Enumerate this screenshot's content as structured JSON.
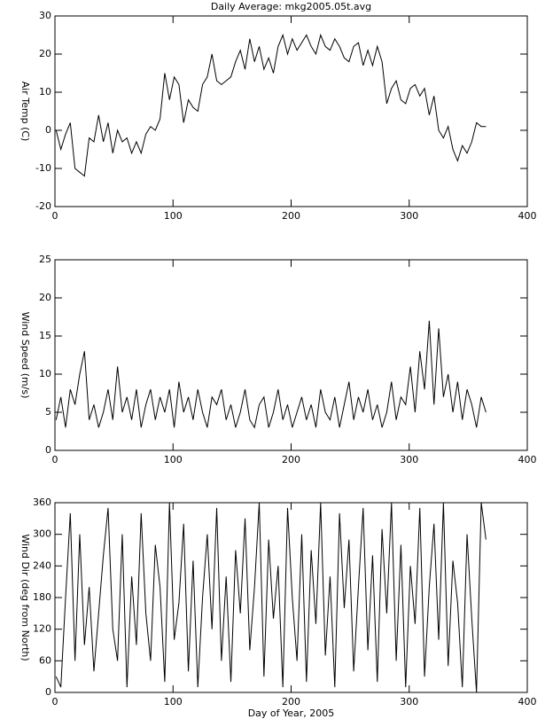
{
  "chart_data": [
    {
      "type": "line",
      "title": "Daily Average: mkg2005.05t.avg",
      "ylabel": "Air Temp (C)",
      "color": "#000000",
      "xlim": [
        0,
        400
      ],
      "xticks": [
        0,
        100,
        200,
        300,
        400
      ],
      "ylim": [
        -20,
        30
      ],
      "yticks": [
        -20,
        -10,
        0,
        10,
        20,
        30
      ],
      "x": [
        1,
        5,
        9,
        13,
        17,
        21,
        25,
        29,
        33,
        37,
        41,
        45,
        49,
        53,
        57,
        61,
        65,
        69,
        73,
        77,
        81,
        85,
        89,
        93,
        97,
        101,
        105,
        109,
        113,
        117,
        121,
        125,
        129,
        133,
        137,
        141,
        145,
        149,
        153,
        157,
        161,
        165,
        169,
        173,
        177,
        181,
        185,
        189,
        193,
        197,
        201,
        205,
        209,
        213,
        217,
        221,
        225,
        229,
        233,
        237,
        241,
        245,
        249,
        253,
        257,
        261,
        265,
        269,
        273,
        277,
        281,
        285,
        289,
        293,
        297,
        301,
        305,
        309,
        313,
        317,
        321,
        325,
        329,
        333,
        337,
        341,
        345,
        349,
        353,
        357,
        361,
        365
      ],
      "values": [
        0,
        -5,
        -1,
        2,
        -10,
        -11,
        -12,
        -2,
        -3,
        4,
        -3,
        2,
        -6,
        0,
        -3,
        -2,
        -6,
        -3,
        -6,
        -1,
        1,
        0,
        3,
        15,
        8,
        14,
        12,
        2,
        8,
        6,
        5,
        12,
        14,
        20,
        13,
        12,
        13,
        14,
        18,
        21,
        16,
        24,
        18,
        22,
        16,
        19,
        15,
        22,
        25,
        20,
        24,
        21,
        23,
        25,
        22,
        20,
        25,
        22,
        21,
        24,
        22,
        19,
        18,
        22,
        23,
        17,
        21,
        17,
        22,
        18,
        7,
        11,
        13,
        8,
        7,
        11,
        12,
        9,
        11,
        4,
        9,
        0,
        -2,
        1,
        -5,
        -8,
        -4,
        -6,
        -3,
        2,
        1,
        1
      ]
    },
    {
      "type": "line",
      "ylabel": "Wind Speed (m/s)",
      "color": "#000000",
      "xlim": [
        0,
        400
      ],
      "xticks": [
        0,
        100,
        200,
        300,
        400
      ],
      "ylim": [
        0,
        25
      ],
      "yticks": [
        0,
        5,
        10,
        15,
        20,
        25
      ],
      "x": [
        1,
        5,
        9,
        13,
        17,
        21,
        25,
        29,
        33,
        37,
        41,
        45,
        49,
        53,
        57,
        61,
        65,
        69,
        73,
        77,
        81,
        85,
        89,
        93,
        97,
        101,
        105,
        109,
        113,
        117,
        121,
        125,
        129,
        133,
        137,
        141,
        145,
        149,
        153,
        157,
        161,
        165,
        169,
        173,
        177,
        181,
        185,
        189,
        193,
        197,
        201,
        205,
        209,
        213,
        217,
        221,
        225,
        229,
        233,
        237,
        241,
        245,
        249,
        253,
        257,
        261,
        265,
        269,
        273,
        277,
        281,
        285,
        289,
        293,
        297,
        301,
        305,
        309,
        313,
        317,
        321,
        325,
        329,
        333,
        337,
        341,
        345,
        349,
        353,
        357,
        361,
        365
      ],
      "values": [
        4,
        7,
        3,
        8,
        6,
        10,
        13,
        4,
        6,
        3,
        5,
        8,
        4,
        11,
        5,
        7,
        4,
        8,
        3,
        6,
        8,
        4,
        7,
        5,
        8,
        3,
        9,
        5,
        7,
        4,
        8,
        5,
        3,
        7,
        6,
        8,
        4,
        6,
        3,
        5,
        8,
        4,
        3,
        6,
        7,
        3,
        5,
        8,
        4,
        6,
        3,
        5,
        7,
        4,
        6,
        3,
        8,
        5,
        4,
        7,
        3,
        6,
        9,
        4,
        7,
        5,
        8,
        4,
        6,
        3,
        5,
        9,
        4,
        7,
        6,
        11,
        5,
        13,
        8,
        17,
        6,
        16,
        7,
        10,
        5,
        9,
        4,
        8,
        6,
        3,
        7,
        5
      ]
    },
    {
      "type": "line",
      "ylabel": "Wind Dir (deg from North)",
      "xlabel": "Day of Year, 2005",
      "color": "#000000",
      "xlim": [
        0,
        400
      ],
      "xticks": [
        0,
        100,
        200,
        300,
        400
      ],
      "ylim": [
        0,
        360
      ],
      "yticks": [
        0,
        60,
        120,
        180,
        240,
        300,
        360
      ],
      "x": [
        1,
        5,
        9,
        13,
        17,
        21,
        25,
        29,
        33,
        37,
        41,
        45,
        49,
        53,
        57,
        61,
        65,
        69,
        73,
        77,
        81,
        85,
        89,
        93,
        97,
        101,
        105,
        109,
        113,
        117,
        121,
        125,
        129,
        133,
        137,
        141,
        145,
        149,
        153,
        157,
        161,
        165,
        169,
        173,
        177,
        181,
        185,
        189,
        193,
        197,
        201,
        205,
        209,
        213,
        217,
        221,
        225,
        229,
        233,
        237,
        241,
        245,
        249,
        253,
        257,
        261,
        265,
        269,
        273,
        277,
        281,
        285,
        289,
        293,
        297,
        301,
        305,
        309,
        313,
        317,
        321,
        325,
        329,
        333,
        337,
        341,
        345,
        349,
        353,
        357,
        361,
        365
      ],
      "values": [
        30,
        10,
        180,
        340,
        60,
        300,
        90,
        200,
        40,
        150,
        260,
        350,
        120,
        60,
        300,
        10,
        220,
        90,
        340,
        150,
        60,
        280,
        200,
        20,
        360,
        100,
        170,
        320,
        40,
        250,
        10,
        180,
        300,
        120,
        350,
        60,
        220,
        20,
        270,
        150,
        330,
        80,
        200,
        360,
        30,
        290,
        140,
        240,
        10,
        350,
        180,
        60,
        300,
        20,
        270,
        130,
        360,
        70,
        220,
        10,
        340,
        160,
        290,
        40,
        200,
        350,
        80,
        260,
        20,
        310,
        150,
        360,
        60,
        280,
        10,
        240,
        130,
        350,
        30,
        200,
        320,
        100,
        360,
        50,
        250,
        170,
        10,
        300,
        140,
        0,
        360,
        290
      ]
    }
  ]
}
